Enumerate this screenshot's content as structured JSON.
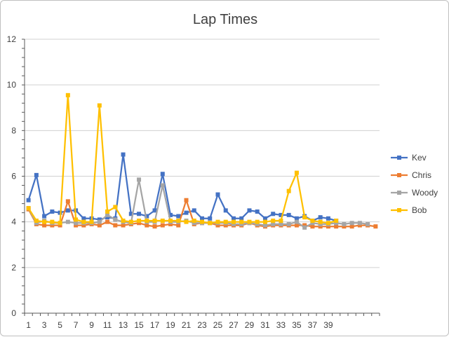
{
  "chart_data": {
    "type": "line",
    "title": "Lap Times",
    "xlabel": "",
    "ylabel": "",
    "ylim": [
      0,
      12
    ],
    "y_ticks": [
      0,
      2,
      4,
      6,
      8,
      10,
      12
    ],
    "x_tick_labels": [
      1,
      3,
      5,
      7,
      9,
      11,
      13,
      15,
      17,
      19,
      21,
      23,
      25,
      27,
      29,
      31,
      33,
      35,
      37,
      39
    ],
    "grid": "horizontal",
    "legend_position": "right",
    "series": [
      {
        "name": "Kev",
        "color": "#4472c4",
        "values": [
          4.95,
          6.05,
          4.25,
          4.45,
          4.4,
          4.5,
          4.5,
          4.15,
          4.15,
          4.1,
          4.2,
          4.15,
          6.95,
          4.35,
          4.35,
          4.25,
          4.5,
          6.1,
          4.3,
          4.25,
          4.4,
          4.5,
          4.15,
          4.15,
          5.2,
          4.5,
          4.15,
          4.15,
          4.5,
          4.45,
          4.15,
          4.35,
          4.3,
          4.3,
          4.15,
          4.25,
          4.05,
          4.2,
          4.15,
          4.05
        ]
      },
      {
        "name": "Chris",
        "color": "#ed7d31",
        "values": [
          4.55,
          3.9,
          3.85,
          3.85,
          3.85,
          4.9,
          3.85,
          3.85,
          3.9,
          3.85,
          4.0,
          3.85,
          3.85,
          3.9,
          3.95,
          3.85,
          3.8,
          3.85,
          3.9,
          3.85,
          4.95,
          3.9,
          3.95,
          3.95,
          3.85,
          3.85,
          3.85,
          3.85,
          3.95,
          3.85,
          3.8,
          3.85,
          3.85,
          3.85,
          3.85,
          3.85,
          3.8,
          3.8,
          3.8,
          3.8,
          3.8,
          3.8,
          3.85,
          3.85,
          3.8
        ]
      },
      {
        "name": "Woody",
        "color": "#a5a5a5",
        "values": [
          4.6,
          3.95,
          4.05,
          3.95,
          3.95,
          4.0,
          3.95,
          3.95,
          3.95,
          4.0,
          4.3,
          4.1,
          4.0,
          3.95,
          5.85,
          4.0,
          4.0,
          5.6,
          4.0,
          4.0,
          4.05,
          3.95,
          3.95,
          3.95,
          3.95,
          3.95,
          3.9,
          3.9,
          3.95,
          3.9,
          3.85,
          3.9,
          3.9,
          3.9,
          4.0,
          3.75,
          3.95,
          3.9,
          3.9,
          3.95,
          3.9,
          3.95,
          3.95,
          3.9
        ]
      },
      {
        "name": "Bob",
        "color": "#ffc000",
        "values": [
          4.6,
          4.05,
          4.0,
          4.0,
          3.95,
          9.55,
          4.1,
          4.0,
          4.0,
          9.1,
          4.45,
          4.65,
          4.05,
          4.0,
          4.05,
          4.05,
          4.05,
          4.05,
          4.05,
          4.05,
          4.0,
          4.05,
          4.0,
          3.95,
          4.0,
          4.0,
          4.0,
          4.0,
          4.0,
          4.0,
          4.0,
          4.05,
          4.05,
          5.35,
          6.15,
          4.2,
          4.05,
          4.0,
          3.95,
          4.05
        ]
      }
    ]
  }
}
